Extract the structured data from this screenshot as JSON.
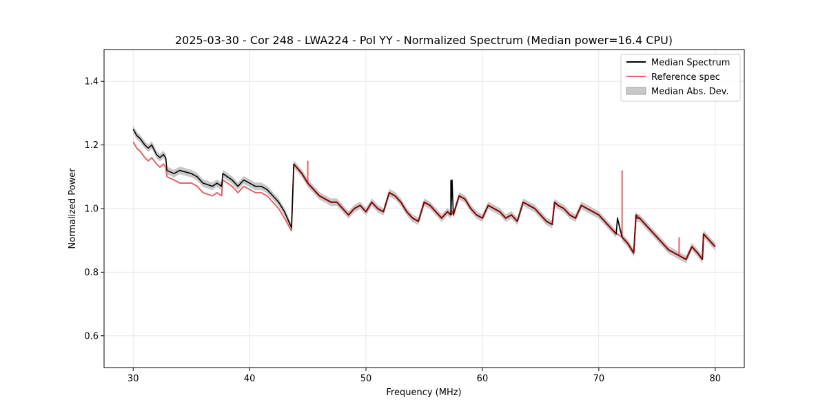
{
  "chart_data": {
    "type": "line",
    "title": "2025-03-30 - Cor 248 - LWA224 - Pol YY - Normalized Spectrum (Median power=16.4 CPU)",
    "xlabel": "Frequency (MHz)",
    "ylabel": "Normalized Power",
    "xlim": [
      27.5,
      82.5
    ],
    "ylim": [
      0.5,
      1.5
    ],
    "xticks": [
      30,
      40,
      50,
      60,
      70,
      80
    ],
    "yticks": [
      0.6,
      0.8,
      1.0,
      1.2,
      1.4
    ],
    "xtick_labels": [
      "30",
      "40",
      "50",
      "60",
      "70",
      "80"
    ],
    "ytick_labels": [
      "0.6",
      "0.8",
      "1.0",
      "1.2",
      "1.4"
    ],
    "grid": true,
    "legend_position": "top-right",
    "legend": [
      "Median Spectrum",
      "Reference spec",
      "Median Abs. Dev."
    ],
    "colors": {
      "median": "#000000",
      "reference": "#f06060",
      "overlap": "#8b0000",
      "mad": "#c8c8c8"
    },
    "mad_width": 0.012,
    "series": [
      {
        "name": "Median Spectrum",
        "x": [
          30.0,
          30.3,
          30.6,
          31.0,
          31.3,
          31.6,
          32.0,
          32.3,
          32.6,
          32.8,
          32.9,
          33.5,
          34.0,
          35.0,
          35.5,
          36.0,
          36.8,
          37.2,
          37.6,
          37.7,
          38.5,
          39.0,
          39.5,
          40.0,
          40.5,
          41.0,
          41.5,
          42.0,
          42.5,
          43.0,
          43.6,
          43.8,
          44.5,
          45.0,
          45.5,
          46.0,
          46.5,
          47.0,
          47.5,
          48.0,
          48.5,
          49.0,
          49.5,
          50.0,
          50.5,
          51.0,
          51.5,
          52.0,
          52.5,
          53.0,
          53.5,
          54.0,
          54.5,
          55.0,
          55.5,
          56.0,
          56.5,
          57.0,
          57.3,
          57.4,
          57.5,
          58.0,
          58.5,
          59.0,
          59.5,
          60.0,
          60.5,
          61.0,
          61.5,
          62.0,
          62.5,
          63.0,
          63.5,
          64.0,
          64.5,
          65.0,
          65.5,
          66.0,
          66.2,
          66.5,
          67.0,
          67.5,
          68.0,
          68.5,
          69.0,
          69.5,
          70.0,
          70.5,
          71.0,
          71.5,
          71.6,
          72.0,
          72.5,
          73.0,
          73.2,
          73.3,
          73.5,
          74.0,
          74.5,
          75.0,
          75.5,
          76.0,
          76.5,
          77.0,
          77.5,
          78.0,
          78.5,
          78.9,
          79.0,
          79.5,
          80.0
        ],
        "values": [
          1.25,
          1.23,
          1.22,
          1.2,
          1.19,
          1.2,
          1.17,
          1.16,
          1.17,
          1.16,
          1.12,
          1.11,
          1.12,
          1.11,
          1.1,
          1.08,
          1.07,
          1.08,
          1.07,
          1.11,
          1.09,
          1.07,
          1.09,
          1.08,
          1.07,
          1.07,
          1.06,
          1.04,
          1.02,
          0.99,
          0.94,
          1.14,
          1.11,
          1.08,
          1.06,
          1.04,
          1.03,
          1.02,
          1.02,
          1.0,
          0.98,
          1.0,
          1.01,
          0.99,
          1.02,
          1.0,
          0.99,
          1.05,
          1.04,
          1.02,
          0.99,
          0.97,
          0.96,
          1.02,
          1.01,
          0.99,
          0.97,
          0.99,
          0.98,
          1.09,
          0.98,
          1.04,
          1.03,
          1.0,
          0.98,
          0.97,
          1.01,
          1.0,
          0.99,
          0.97,
          0.98,
          0.96,
          1.02,
          1.01,
          1.0,
          0.98,
          0.96,
          0.95,
          1.02,
          1.01,
          1.0,
          0.98,
          0.97,
          1.01,
          1.0,
          0.99,
          0.98,
          0.96,
          0.94,
          0.92,
          0.97,
          0.91,
          0.89,
          0.86,
          0.98,
          0.97,
          0.97,
          0.95,
          0.93,
          0.91,
          0.89,
          0.87,
          0.86,
          0.85,
          0.84,
          0.88,
          0.86,
          0.84,
          0.92,
          0.9,
          0.88
        ]
      },
      {
        "name": "Reference spec",
        "x": [
          30.0,
          30.3,
          30.6,
          31.0,
          31.3,
          31.6,
          32.0,
          32.3,
          32.6,
          32.8,
          32.9,
          33.5,
          34.0,
          35.0,
          35.5,
          36.0,
          36.8,
          37.2,
          37.6,
          37.7,
          38.5,
          39.0,
          39.5,
          40.0,
          40.5,
          41.0,
          41.5,
          42.0,
          42.5,
          43.0,
          43.6,
          43.8,
          44.5,
          45.0,
          45.5,
          46.0,
          46.5,
          47.0,
          47.5,
          48.0,
          48.5,
          49.0,
          49.5,
          50.0,
          50.5,
          51.0,
          51.5,
          52.0,
          52.5,
          53.0,
          53.5,
          54.0,
          54.5,
          55.0,
          55.5,
          56.0,
          56.5,
          57.0,
          57.3,
          57.4,
          57.5,
          58.0,
          58.5,
          59.0,
          59.5,
          60.0,
          60.5,
          61.0,
          61.5,
          62.0,
          62.5,
          63.0,
          63.5,
          64.0,
          64.5,
          65.0,
          65.5,
          66.0,
          66.2,
          66.5,
          67.0,
          67.5,
          68.0,
          68.5,
          69.0,
          69.5,
          70.0,
          70.5,
          71.0,
          71.5,
          71.6,
          72.0,
          72.5,
          73.0,
          73.2,
          73.3,
          73.5,
          74.0,
          74.5,
          75.0,
          75.5,
          76.0,
          76.5,
          77.0,
          77.5,
          78.0,
          78.5,
          78.9,
          79.0,
          79.5,
          80.0
        ],
        "values": [
          1.21,
          1.19,
          1.18,
          1.16,
          1.15,
          1.16,
          1.14,
          1.13,
          1.14,
          1.13,
          1.1,
          1.09,
          1.08,
          1.08,
          1.07,
          1.05,
          1.04,
          1.05,
          1.04,
          1.09,
          1.07,
          1.05,
          1.07,
          1.06,
          1.05,
          1.05,
          1.04,
          1.02,
          1.0,
          0.97,
          0.93,
          1.14,
          1.11,
          1.08,
          1.06,
          1.04,
          1.03,
          1.02,
          1.02,
          1.0,
          0.98,
          1.0,
          1.01,
          0.99,
          1.02,
          1.0,
          0.99,
          1.05,
          1.04,
          1.02,
          0.99,
          0.97,
          0.96,
          1.02,
          1.01,
          0.99,
          0.97,
          0.99,
          0.98,
          0.99,
          0.98,
          1.04,
          1.03,
          1.0,
          0.98,
          0.97,
          1.01,
          1.0,
          0.99,
          0.97,
          0.98,
          0.96,
          1.02,
          1.01,
          1.0,
          0.98,
          0.96,
          0.95,
          1.02,
          1.01,
          1.0,
          0.98,
          0.97,
          1.01,
          1.0,
          0.99,
          0.98,
          0.96,
          0.94,
          0.92,
          0.92,
          0.91,
          0.89,
          0.86,
          0.98,
          0.98,
          0.97,
          0.95,
          0.93,
          0.91,
          0.89,
          0.87,
          0.86,
          0.85,
          0.84,
          0.88,
          0.86,
          0.84,
          0.92,
          0.9,
          0.88
        ]
      }
    ],
    "spikes": [
      {
        "series": "Median Spectrum",
        "x": 57.3,
        "y": 1.09
      },
      {
        "series": "Median Spectrum",
        "x": 71.6,
        "y": 0.97
      },
      {
        "series": "Reference spec",
        "x": 45.0,
        "y": 1.15
      },
      {
        "series": "Reference spec",
        "x": 72.0,
        "y": 1.12
      },
      {
        "series": "Reference spec",
        "x": 76.9,
        "y": 0.91
      }
    ]
  }
}
